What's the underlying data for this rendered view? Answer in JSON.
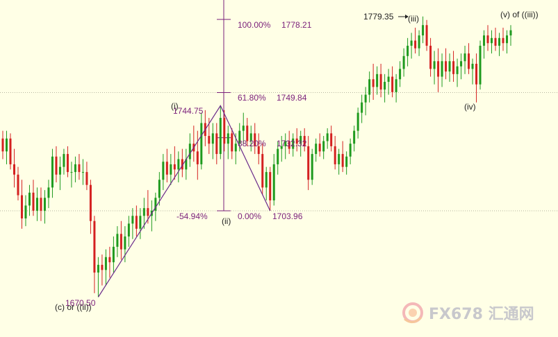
{
  "chart_data": {
    "type": "candlestick",
    "title": "",
    "xlabel": "",
    "ylabel": "",
    "ylim": [
      1665,
      1787
    ],
    "colors": {
      "up": "#1e9a1e",
      "down": "#d42020",
      "fib": "#7a1f7a",
      "wave": "#6a2a8a",
      "background": "#ffffe6",
      "hline": "#b5b5a0"
    },
    "swing_points": [
      {
        "label": "1670.50",
        "value": 1670.5
      },
      {
        "label": "1744.75",
        "value": 1744.75
      },
      {
        "label": "1779.35",
        "value": 1779.35
      }
    ],
    "fib_levels": [
      {
        "percent": "100.00%",
        "value": "1778.21",
        "price": 1778.21
      },
      {
        "percent": "61.80%",
        "value": "1749.84",
        "price": 1749.84
      },
      {
        "percent": "38.20%",
        "value": "1732.32",
        "price": 1732.32
      },
      {
        "percent": "0.00%",
        "value": "1703.96",
        "price": 1703.96
      }
    ],
    "retracement_label": "-54.94%",
    "wave_labels": [
      "(c) or ((ii))",
      "(i)",
      "(ii)",
      "(iii)",
      "(iv)",
      "(v)  of ((iii))"
    ],
    "wave_path": [
      1670.5,
      1744.75,
      1703.96
    ],
    "horizontal_lines": [
      1749.84,
      1703.96
    ],
    "candles": [
      [
        1732,
        1735,
        1724,
        1727
      ],
      [
        1727,
        1735,
        1722,
        1732
      ],
      [
        1732,
        1734,
        1720,
        1722
      ],
      [
        1722,
        1728,
        1713,
        1718
      ],
      [
        1718,
        1721,
        1708,
        1710
      ],
      [
        1710,
        1716,
        1697,
        1701
      ],
      [
        1701,
        1710,
        1698,
        1706
      ],
      [
        1706,
        1714,
        1702,
        1711
      ],
      [
        1711,
        1716,
        1702,
        1704
      ],
      [
        1704,
        1713,
        1700,
        1709
      ],
      [
        1709,
        1713,
        1700,
        1704
      ],
      [
        1704,
        1712,
        1699,
        1709
      ],
      [
        1709,
        1716,
        1705,
        1713
      ],
      [
        1713,
        1728,
        1709,
        1725
      ],
      [
        1725,
        1729,
        1715,
        1718
      ],
      [
        1718,
        1725,
        1712,
        1721
      ],
      [
        1721,
        1728,
        1718,
        1726
      ],
      [
        1726,
        1729,
        1717,
        1719
      ],
      [
        1719,
        1723,
        1713,
        1719
      ],
      [
        1719,
        1725,
        1715,
        1722
      ],
      [
        1722,
        1726,
        1716,
        1719
      ],
      [
        1719,
        1724,
        1714,
        1719
      ],
      [
        1719,
        1723,
        1712,
        1714
      ],
      [
        1714,
        1716,
        1695,
        1700
      ],
      [
        1700,
        1702,
        1672,
        1680
      ],
      [
        1680,
        1686,
        1670.5,
        1683
      ],
      [
        1683,
        1687,
        1675,
        1681
      ],
      [
        1681,
        1689,
        1675,
        1686
      ],
      [
        1686,
        1690,
        1678,
        1684
      ],
      [
        1684,
        1694,
        1680,
        1690
      ],
      [
        1690,
        1698,
        1686,
        1695
      ],
      [
        1695,
        1700,
        1685,
        1689
      ],
      [
        1689,
        1698,
        1684,
        1694
      ],
      [
        1694,
        1702,
        1690,
        1699
      ],
      [
        1699,
        1705,
        1693,
        1702
      ],
      [
        1702,
        1706,
        1694,
        1697
      ],
      [
        1697,
        1705,
        1693,
        1702
      ],
      [
        1702,
        1709,
        1697,
        1705
      ],
      [
        1705,
        1712,
        1699,
        1702
      ],
      [
        1702,
        1708,
        1696,
        1704
      ],
      [
        1704,
        1711,
        1700,
        1709
      ],
      [
        1709,
        1719,
        1706,
        1716
      ],
      [
        1716,
        1726,
        1712,
        1723
      ],
      [
        1723,
        1728,
        1715,
        1718
      ],
      [
        1718,
        1726,
        1714,
        1722
      ],
      [
        1722,
        1729,
        1716,
        1720
      ],
      [
        1720,
        1727,
        1715,
        1724
      ],
      [
        1724,
        1728,
        1717,
        1720
      ],
      [
        1720,
        1728,
        1716,
        1724
      ],
      [
        1724,
        1734,
        1721,
        1730
      ],
      [
        1730,
        1737,
        1723,
        1727
      ],
      [
        1727,
        1735,
        1716,
        1722
      ],
      [
        1722,
        1742,
        1720,
        1738
      ],
      [
        1738,
        1743,
        1729,
        1733
      ],
      [
        1733,
        1740,
        1726,
        1730
      ],
      [
        1730,
        1738,
        1724,
        1734
      ],
      [
        1734,
        1738,
        1722,
        1726
      ],
      [
        1726,
        1744.75,
        1724,
        1740
      ],
      [
        1740,
        1743,
        1727,
        1730
      ],
      [
        1730,
        1737,
        1724,
        1734
      ],
      [
        1734,
        1736,
        1724,
        1727
      ],
      [
        1727,
        1734,
        1722,
        1730
      ],
      [
        1730,
        1738,
        1727,
        1735
      ],
      [
        1735,
        1742,
        1730,
        1737
      ],
      [
        1737,
        1740,
        1729,
        1731
      ],
      [
        1731,
        1737,
        1727,
        1734
      ],
      [
        1734,
        1738,
        1726,
        1729
      ],
      [
        1729,
        1734,
        1722,
        1726
      ],
      [
        1726,
        1730,
        1710,
        1713
      ],
      [
        1713,
        1721,
        1708,
        1719
      ],
      [
        1719,
        1721,
        1703.96,
        1708
      ],
      [
        1708,
        1726,
        1706,
        1722
      ],
      [
        1722,
        1731,
        1718,
        1728
      ],
      [
        1728,
        1733,
        1723,
        1729
      ],
      [
        1729,
        1734,
        1724,
        1731
      ],
      [
        1731,
        1735,
        1726,
        1728
      ],
      [
        1728,
        1734,
        1725,
        1732
      ],
      [
        1732,
        1736,
        1727,
        1730
      ],
      [
        1730,
        1735,
        1725,
        1733
      ],
      [
        1733,
        1736,
        1727,
        1729
      ],
      [
        1729,
        1733,
        1712,
        1716
      ],
      [
        1716,
        1728,
        1714,
        1726
      ],
      [
        1726,
        1732,
        1723,
        1730
      ],
      [
        1730,
        1734,
        1725,
        1727
      ],
      [
        1727,
        1733,
        1724,
        1731
      ],
      [
        1731,
        1736,
        1728,
        1734
      ],
      [
        1734,
        1737,
        1727,
        1729
      ],
      [
        1729,
        1733,
        1720,
        1722
      ],
      [
        1722,
        1728,
        1718,
        1726
      ],
      [
        1726,
        1731,
        1719,
        1721
      ],
      [
        1721,
        1727,
        1718,
        1725
      ],
      [
        1725,
        1732,
        1722,
        1730
      ],
      [
        1730,
        1737,
        1727,
        1735
      ],
      [
        1735,
        1744,
        1732,
        1742
      ],
      [
        1742,
        1749,
        1738,
        1746
      ],
      [
        1746,
        1752,
        1741,
        1749
      ],
      [
        1749,
        1758,
        1746,
        1755
      ],
      [
        1755,
        1761,
        1747,
        1752
      ],
      [
        1752,
        1760,
        1749,
        1757
      ],
      [
        1757,
        1761,
        1748,
        1751
      ],
      [
        1751,
        1757,
        1746,
        1754
      ],
      [
        1754,
        1759,
        1749,
        1756
      ],
      [
        1756,
        1760,
        1748,
        1750
      ],
      [
        1750,
        1757,
        1746,
        1755
      ],
      [
        1755,
        1762,
        1752,
        1759
      ],
      [
        1759,
        1767,
        1756,
        1764
      ],
      [
        1764,
        1771,
        1760,
        1768
      ],
      [
        1768,
        1773,
        1763,
        1770
      ],
      [
        1770,
        1775,
        1765,
        1767
      ],
      [
        1767,
        1774,
        1764,
        1772
      ],
      [
        1772,
        1779.35,
        1769,
        1776
      ],
      [
        1776,
        1778,
        1766,
        1768
      ],
      [
        1768,
        1771,
        1756,
        1759
      ],
      [
        1759,
        1766,
        1753,
        1762
      ],
      [
        1762,
        1767,
        1750,
        1756
      ],
      [
        1756,
        1765,
        1752,
        1762
      ],
      [
        1762,
        1767,
        1755,
        1758
      ],
      [
        1758,
        1765,
        1754,
        1762
      ],
      [
        1762,
        1766,
        1754,
        1757
      ],
      [
        1757,
        1763,
        1752,
        1760
      ],
      [
        1760,
        1765,
        1755,
        1762
      ],
      [
        1762,
        1768,
        1757,
        1765
      ],
      [
        1765,
        1769,
        1757,
        1759
      ],
      [
        1759,
        1763,
        1753,
        1761
      ],
      [
        1761,
        1765,
        1746,
        1753
      ],
      [
        1753,
        1770,
        1751,
        1768
      ],
      [
        1768,
        1774,
        1763,
        1772
      ],
      [
        1772,
        1776,
        1766,
        1769
      ],
      [
        1769,
        1774,
        1765,
        1771
      ],
      [
        1771,
        1775,
        1766,
        1768
      ],
      [
        1768,
        1773,
        1764,
        1771
      ],
      [
        1771,
        1775,
        1766,
        1769
      ],
      [
        1769,
        1774,
        1765,
        1772
      ],
      [
        1772,
        1776,
        1768,
        1774
      ]
    ]
  },
  "watermark": {
    "text": "FX678 汇通网",
    "icon": "fx678-logo-icon"
  }
}
